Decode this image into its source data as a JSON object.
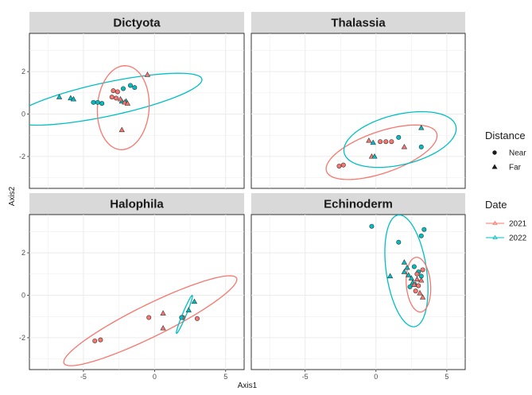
{
  "chart_data": {
    "type": "scatter",
    "xlabel": "Axis1",
    "ylabel": "Axis2",
    "grid": true,
    "legend_position": "right",
    "colors": {
      "2021": "#F8766D",
      "2022": "#00BFC4"
    },
    "legends": [
      {
        "title": "Distance",
        "entries": [
          {
            "label": "Near",
            "shape": "circle"
          },
          {
            "label": "Far",
            "shape": "triangle"
          }
        ]
      },
      {
        "title": "Date",
        "entries": [
          {
            "label": "2021"
          },
          {
            "label": "2022"
          }
        ]
      }
    ],
    "panels": [
      {
        "title": "Dictyota",
        "ylim": [
          -3.5,
          3.8
        ],
        "xlim": [
          -8.8,
          6.3
        ],
        "yticks": [
          -2,
          0,
          2
        ],
        "points": [
          {
            "x": -6.7,
            "y": 0.8,
            "date": "2022",
            "distance": "Far"
          },
          {
            "x": -5.9,
            "y": 0.75,
            "date": "2022",
            "distance": "Far"
          },
          {
            "x": -5.7,
            "y": 0.7,
            "date": "2022",
            "distance": "Far"
          },
          {
            "x": -4.3,
            "y": 0.55,
            "date": "2022",
            "distance": "Near"
          },
          {
            "x": -4.0,
            "y": 0.55,
            "date": "2022",
            "distance": "Near"
          },
          {
            "x": -3.7,
            "y": 0.5,
            "date": "2022",
            "distance": "Near"
          },
          {
            "x": -1.7,
            "y": 1.35,
            "date": "2022",
            "distance": "Near"
          },
          {
            "x": -1.4,
            "y": 1.25,
            "date": "2022",
            "distance": "Near"
          },
          {
            "x": -2.2,
            "y": 1.2,
            "date": "2022",
            "distance": "Near"
          },
          {
            "x": -2.3,
            "y": 0.6,
            "date": "2022",
            "distance": "Far"
          },
          {
            "x": -2.0,
            "y": 0.6,
            "date": "2022",
            "distance": "Far"
          },
          {
            "x": -2.9,
            "y": 1.1,
            "date": "2021",
            "distance": "Near"
          },
          {
            "x": -2.6,
            "y": 1.05,
            "date": "2021",
            "distance": "Near"
          },
          {
            "x": -3.0,
            "y": 0.8,
            "date": "2021",
            "distance": "Near"
          },
          {
            "x": -2.7,
            "y": 0.75,
            "date": "2021",
            "distance": "Near"
          },
          {
            "x": -2.4,
            "y": 0.7,
            "date": "2021",
            "distance": "Far"
          },
          {
            "x": -2.1,
            "y": 0.55,
            "date": "2021",
            "distance": "Far"
          },
          {
            "x": -1.9,
            "y": 0.5,
            "date": "2021",
            "distance": "Far"
          },
          {
            "x": -0.5,
            "y": 1.85,
            "date": "2021",
            "distance": "Far"
          },
          {
            "x": -2.3,
            "y": -0.75,
            "date": "2021",
            "distance": "Far"
          }
        ],
        "ellipses": [
          {
            "date": "2022",
            "cx": -3.3,
            "cy": 0.7,
            "rx": 6.7,
            "ry": 0.8,
            "angle": 8
          },
          {
            "date": "2021",
            "cx": -2.2,
            "cy": 0.3,
            "rx": 1.8,
            "ry": 2.0,
            "angle": -20
          }
        ]
      },
      {
        "title": "Thalassia",
        "ylim": [
          -3.5,
          3.8
        ],
        "xlim": [
          -8.8,
          6.3
        ],
        "yticks": [],
        "points": [
          {
            "x": -2.6,
            "y": -2.45,
            "date": "2021",
            "distance": "Near"
          },
          {
            "x": -2.3,
            "y": -2.4,
            "date": "2021",
            "distance": "Near"
          },
          {
            "x": -0.5,
            "y": -1.25,
            "date": "2021",
            "distance": "Far"
          },
          {
            "x": -0.3,
            "y": -2.0,
            "date": "2021",
            "distance": "Far"
          },
          {
            "x": 0.3,
            "y": -1.3,
            "date": "2021",
            "distance": "Near"
          },
          {
            "x": 0.7,
            "y": -1.3,
            "date": "2021",
            "distance": "Near"
          },
          {
            "x": 1.1,
            "y": -1.3,
            "date": "2021",
            "distance": "Near"
          },
          {
            "x": 2.0,
            "y": -1.55,
            "date": "2021",
            "distance": "Far"
          },
          {
            "x": -0.2,
            "y": -1.35,
            "date": "2022",
            "distance": "Far"
          },
          {
            "x": -0.1,
            "y": -2.0,
            "date": "2022",
            "distance": "Far"
          },
          {
            "x": 1.6,
            "y": -1.1,
            "date": "2022",
            "distance": "Near"
          },
          {
            "x": 3.2,
            "y": -0.65,
            "date": "2022",
            "distance": "Far"
          },
          {
            "x": 3.2,
            "y": -1.55,
            "date": "2022",
            "distance": "Near"
          }
        ],
        "ellipses": [
          {
            "date": "2021",
            "cx": 0.4,
            "cy": -1.8,
            "rx": 4.0,
            "ry": 1.0,
            "angle": 12
          },
          {
            "date": "2022",
            "cx": 1.7,
            "cy": -1.2,
            "rx": 4.0,
            "ry": 1.2,
            "angle": 8
          }
        ]
      },
      {
        "title": "Halophila",
        "ylim": [
          -3.5,
          3.8
        ],
        "xlim": [
          -8.8,
          6.3
        ],
        "yticks": [
          -2,
          0,
          2
        ],
        "points": [
          {
            "x": -4.2,
            "y": -2.15,
            "date": "2021",
            "distance": "Near"
          },
          {
            "x": -3.8,
            "y": -2.1,
            "date": "2021",
            "distance": "Near"
          },
          {
            "x": -0.4,
            "y": -1.05,
            "date": "2021",
            "distance": "Near"
          },
          {
            "x": 0.6,
            "y": -0.85,
            "date": "2021",
            "distance": "Far"
          },
          {
            "x": 0.6,
            "y": -1.55,
            "date": "2021",
            "distance": "Far"
          },
          {
            "x": 2.0,
            "y": -1.05,
            "date": "2021",
            "distance": "Near"
          },
          {
            "x": 3.0,
            "y": -1.1,
            "date": "2021",
            "distance": "Near"
          },
          {
            "x": 1.9,
            "y": -1.05,
            "date": "2022",
            "distance": "Near"
          },
          {
            "x": 2.4,
            "y": -0.7,
            "date": "2022",
            "distance": "Far"
          },
          {
            "x": 2.8,
            "y": -0.3,
            "date": "2022",
            "distance": "Far"
          }
        ],
        "ellipses": [
          {
            "date": "2021",
            "cx": -0.3,
            "cy": -1.2,
            "rx": 6.4,
            "ry": 0.8,
            "angle": 18
          },
          {
            "date": "2022",
            "cx": 2.1,
            "cy": -0.9,
            "rx": 1.05,
            "ry": 0.12,
            "angle": 58
          }
        ]
      },
      {
        "title": "Echinoderm",
        "ylim": [
          -3.5,
          3.8
        ],
        "xlim": [
          -8.8,
          6.3
        ],
        "yticks": [],
        "points": [
          {
            "x": -0.3,
            "y": 3.25,
            "date": "2022",
            "distance": "Near"
          },
          {
            "x": 3.4,
            "y": 3.1,
            "date": "2022",
            "distance": "Near"
          },
          {
            "x": 3.2,
            "y": 2.8,
            "date": "2022",
            "distance": "Near"
          },
          {
            "x": 1.6,
            "y": 2.5,
            "date": "2022",
            "distance": "Near"
          },
          {
            "x": 2.0,
            "y": 1.55,
            "date": "2022",
            "distance": "Far"
          },
          {
            "x": 2.2,
            "y": 1.3,
            "date": "2022",
            "distance": "Far"
          },
          {
            "x": 2.0,
            "y": 1.1,
            "date": "2022",
            "distance": "Far"
          },
          {
            "x": 2.3,
            "y": 0.95,
            "date": "2022",
            "distance": "Far"
          },
          {
            "x": 2.5,
            "y": 0.8,
            "date": "2022",
            "distance": "Far"
          },
          {
            "x": 2.6,
            "y": 0.6,
            "date": "2022",
            "distance": "Far"
          },
          {
            "x": 2.8,
            "y": 0.5,
            "date": "2022",
            "distance": "Far"
          },
          {
            "x": 2.7,
            "y": 1.35,
            "date": "2022",
            "distance": "Near"
          },
          {
            "x": 3.0,
            "y": 1.1,
            "date": "2022",
            "distance": "Near"
          },
          {
            "x": 3.2,
            "y": 0.9,
            "date": "2022",
            "distance": "Near"
          },
          {
            "x": 1.0,
            "y": 0.9,
            "date": "2022",
            "distance": "Far"
          },
          {
            "x": 2.4,
            "y": 0.4,
            "date": "2022",
            "distance": "Near"
          },
          {
            "x": 2.9,
            "y": 1.0,
            "date": "2021",
            "distance": "Near"
          },
          {
            "x": 3.3,
            "y": 1.2,
            "date": "2021",
            "distance": "Near"
          },
          {
            "x": 2.9,
            "y": 0.75,
            "date": "2021",
            "distance": "Far"
          },
          {
            "x": 3.2,
            "y": 0.7,
            "date": "2021",
            "distance": "Far"
          },
          {
            "x": 2.7,
            "y": 0.5,
            "date": "2021",
            "distance": "Far"
          },
          {
            "x": 3.0,
            "y": 0.45,
            "date": "2021",
            "distance": "Near"
          },
          {
            "x": 2.8,
            "y": 0.2,
            "date": "2021",
            "distance": "Near"
          },
          {
            "x": 3.1,
            "y": 0.1,
            "date": "2021",
            "distance": "Far"
          },
          {
            "x": 3.3,
            "y": -0.1,
            "date": "2021",
            "distance": "Far"
          }
        ],
        "ellipses": [
          {
            "date": "2022",
            "cx": 2.15,
            "cy": 1.15,
            "rx": 2.7,
            "ry": 1.4,
            "angle": 105
          },
          {
            "date": "2021",
            "cx": 3.0,
            "cy": 0.5,
            "rx": 1.3,
            "ry": 0.85,
            "angle": 100
          }
        ]
      }
    ],
    "xticks": [
      -5,
      0,
      5
    ]
  }
}
